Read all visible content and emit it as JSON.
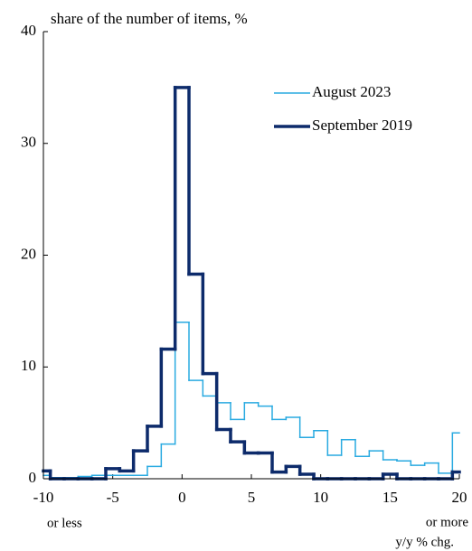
{
  "chart_data": {
    "type": "step",
    "ylabel": "share of the number of items, %",
    "xlabel": "y/y % chg.",
    "annotations": [
      "or less",
      "or more"
    ],
    "x": [
      -10,
      -9,
      -8,
      -7,
      -6,
      -5,
      -4,
      -3,
      -2,
      -1,
      0,
      1,
      2,
      3,
      4,
      5,
      6,
      7,
      8,
      9,
      10,
      11,
      12,
      13,
      14,
      15,
      16,
      17,
      18,
      19,
      20
    ],
    "series": [
      {
        "name": "August 2023",
        "color": "#29aae1",
        "width": 1.5,
        "values": [
          0.3,
          0.1,
          0.1,
          0.2,
          0.3,
          0.3,
          0.3,
          0.3,
          1.1,
          3.1,
          14,
          8.8,
          7.4,
          6.8,
          5.3,
          6.8,
          6.5,
          5.3,
          5.5,
          3.7,
          4.3,
          2.1,
          3.5,
          2.0,
          2.5,
          1.7,
          1.6,
          1.2,
          1.4,
          0.5,
          4.1
        ]
      },
      {
        "name": "September 2019",
        "color": "#0d2b6b",
        "width": 3.5,
        "values": [
          0.7,
          0,
          0,
          0,
          0,
          0.9,
          0.7,
          2.5,
          4.7,
          11.6,
          35,
          18.3,
          9.4,
          4.4,
          3.3,
          2.3,
          2.3,
          0.6,
          1.1,
          0.4,
          0,
          0,
          0,
          0,
          0,
          0.4,
          0,
          0,
          0,
          0,
          0.6
        ]
      }
    ],
    "xlim": [
      -10,
      20
    ],
    "xticks": [
      -10,
      -5,
      0,
      5,
      10,
      15,
      20
    ],
    "ylim": [
      0,
      40
    ],
    "yticks": [
      0,
      10,
      20,
      30,
      40
    ],
    "legend": "upper right"
  }
}
